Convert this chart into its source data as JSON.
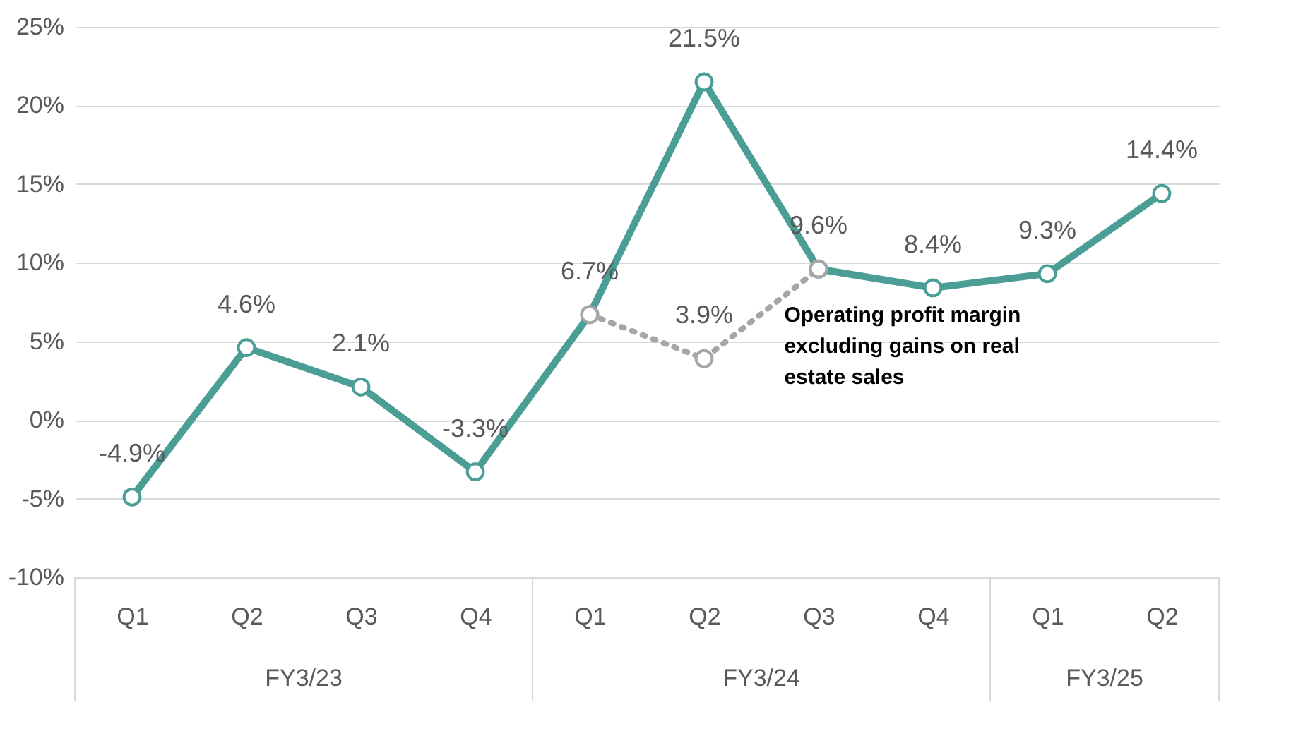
{
  "chart_data": {
    "type": "line",
    "categories": [
      "Q1",
      "Q2",
      "Q3",
      "Q4",
      "Q1",
      "Q2",
      "Q3",
      "Q4",
      "Q1",
      "Q2"
    ],
    "series": [
      {
        "color": "#4a9e96",
        "values": [
          -4.9,
          4.6,
          2.1,
          -3.3,
          6.7,
          21.5,
          9.6,
          8.4,
          9.3,
          14.4
        ],
        "value_labels": [
          "-4.9%",
          "4.6%",
          "2.1%",
          "-3.3%",
          "6.7%",
          "21.5%",
          "9.6%",
          "8.4%",
          "9.3%",
          "14.4%"
        ],
        "line_style": "solid"
      },
      {
        "color": "#a6a6a6",
        "values": [
          null,
          null,
          null,
          null,
          6.7,
          3.9,
          9.6,
          null,
          null,
          null
        ],
        "value_labels": [
          null,
          null,
          null,
          null,
          null,
          "3.9%",
          null,
          null,
          null,
          null
        ],
        "line_style": "dotted"
      }
    ],
    "ylim": [
      -10,
      25
    ],
    "yticks": [
      {
        "value": -10,
        "label": "-10%"
      },
      {
        "value": -5,
        "label": "-5%"
      },
      {
        "value": 0,
        "label": "0%"
      },
      {
        "value": 5,
        "label": "5%"
      },
      {
        "value": 10,
        "label": "10%"
      },
      {
        "value": 15,
        "label": "15%"
      },
      {
        "value": 20,
        "label": "20%"
      },
      {
        "value": 25,
        "label": "25%"
      }
    ],
    "grid": "y",
    "legend": false,
    "marker": "circle",
    "annotations": [
      "Operating profit margin excluding gains on real estate sales",
      "FY3/23",
      "FY3/24",
      "FY3/25"
    ]
  }
}
